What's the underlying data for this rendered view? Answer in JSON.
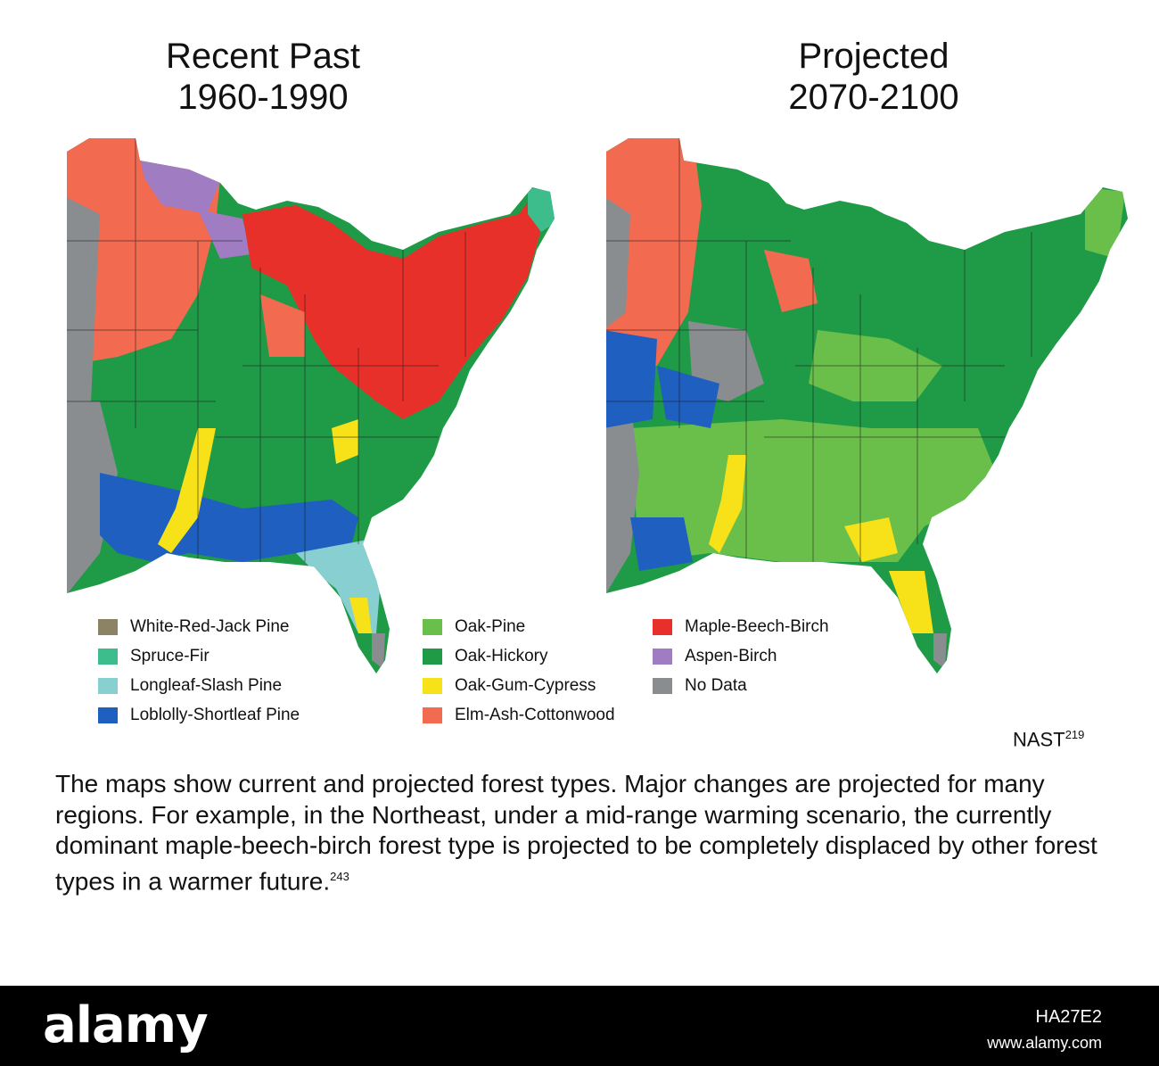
{
  "maps": {
    "left": {
      "title_line1": "Recent Past",
      "title_line2": "1960-1990"
    },
    "right": {
      "title_line1": "Projected",
      "title_line2": "2070-2100"
    }
  },
  "legend": [
    {
      "label": "White-Red-Jack Pine",
      "color": "#8c8264"
    },
    {
      "label": "Spruce-Fir",
      "color": "#3dbd8c"
    },
    {
      "label": "Longleaf-Slash Pine",
      "color": "#87cfd1"
    },
    {
      "label": "Loblolly-Shortleaf Pine",
      "color": "#1f5fbf"
    },
    {
      "label": "Oak-Pine",
      "color": "#6abf4b"
    },
    {
      "label": "Oak-Hickory",
      "color": "#1f9a46"
    },
    {
      "label": "Oak-Gum-Cypress",
      "color": "#f7e21a"
    },
    {
      "label": "Elm-Ash-Cottonwood",
      "color": "#f26b50"
    },
    {
      "label": "Maple-Beech-Birch",
      "color": "#e8302a"
    },
    {
      "label": "Aspen-Birch",
      "color": "#a07cc2"
    },
    {
      "label": "No Data",
      "color": "#8a8d90"
    }
  ],
  "source": {
    "label": "NAST",
    "ref": "219"
  },
  "caption": {
    "text": "The maps show current and projected forest types. Major changes are projected for many regions. For example, in the Northeast, under a mid-range warming scenario, the currently dominant maple-beech-birch forest type is projected to be completely displaced by other forest types in a warmer future.",
    "ref": "243"
  },
  "banner": {
    "logo": "alamy",
    "image_id": "HA27E2",
    "url": "www.alamy.com"
  }
}
